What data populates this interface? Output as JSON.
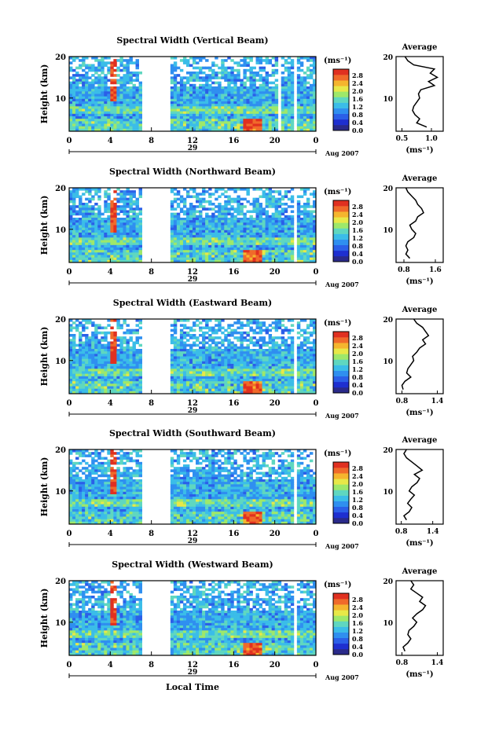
{
  "figure": {
    "xlabel": "Local Time",
    "date_label": "Aug 2007",
    "day_label": "29",
    "unit_label": "(ms⁻¹)",
    "avg_title": "Average",
    "ylabel": "Height (km)",
    "x_ticks": [
      "0",
      "4",
      "8",
      "12",
      "16",
      "20",
      "0"
    ],
    "y_ticks": [
      "20",
      "10"
    ],
    "colorbar_ticks": [
      "2.8",
      "2.4",
      "2.0",
      "1.6",
      "1.2",
      "0.8",
      "0.4",
      "0.0"
    ],
    "colors": {
      "scale": [
        "#2a2a8a",
        "#1e2fd0",
        "#2b5fe8",
        "#2f8ff0",
        "#3bbde8",
        "#5fd7c0",
        "#9ee86a",
        "#e8e848",
        "#f5b52e",
        "#f06a2a",
        "#e03020"
      ],
      "line": "#000000"
    }
  },
  "chart_data": [
    {
      "type": "heatmap",
      "title": "Spectral Width (Vertical Beam)",
      "ylabel": "Height (km)",
      "xlabel": "Local Time",
      "x_range_hours": [
        0,
        24
      ],
      "y_range_km": [
        2,
        20
      ],
      "colorbar_range": [
        0.0,
        2.8
      ],
      "data_gaps_hours": [
        [
          7.0,
          9.8
        ],
        [
          20.2,
          20.5
        ],
        [
          21.8,
          22.1
        ]
      ],
      "profile": {
        "title": "Average",
        "xlabel": "(ms⁻¹)",
        "x_ticks": [
          "0.5",
          "1.0"
        ],
        "x_range": [
          0.4,
          1.2
        ],
        "heights_km": [
          3,
          4,
          5,
          6,
          7,
          8,
          9,
          10,
          11,
          12,
          13,
          14,
          15,
          16,
          17,
          18,
          19,
          20
        ],
        "values": [
          0.92,
          0.75,
          0.8,
          0.72,
          0.68,
          0.7,
          0.75,
          0.8,
          0.78,
          0.82,
          1.05,
          0.95,
          1.1,
          0.98,
          1.05,
          0.7,
          0.6,
          0.55
        ]
      }
    },
    {
      "type": "heatmap",
      "title": "Spectral Width (Northward Beam)",
      "ylabel": "Height (km)",
      "xlabel": "Local Time",
      "x_range_hours": [
        0,
        24
      ],
      "y_range_km": [
        2,
        20
      ],
      "colorbar_range": [
        0.0,
        2.8
      ],
      "data_gaps_hours": [
        [
          7.0,
          9.8
        ],
        [
          21.9,
          22.2
        ]
      ],
      "profile": {
        "title": "Average",
        "xlabel": "(ms⁻¹)",
        "x_ticks": [
          "0.8",
          "1.6"
        ],
        "x_range": [
          0.6,
          1.8
        ],
        "heights_km": [
          3,
          4,
          5,
          6,
          7,
          8,
          9,
          10,
          11,
          12,
          13,
          14,
          15,
          16,
          17,
          18,
          19,
          20
        ],
        "values": [
          0.95,
          0.85,
          0.9,
          0.85,
          0.9,
          1.05,
          1.1,
          1.0,
          0.95,
          1.1,
          1.15,
          1.3,
          1.25,
          1.15,
          1.1,
          1.0,
          0.9,
          0.85
        ]
      }
    },
    {
      "type": "heatmap",
      "title": "Spectral Width (Eastward Beam)",
      "ylabel": "Height (km)",
      "xlabel": "Local Time",
      "x_range_hours": [
        0,
        24
      ],
      "y_range_km": [
        2,
        20
      ],
      "colorbar_range": [
        0.0,
        2.8
      ],
      "data_gaps_hours": [
        [
          7.0,
          9.8
        ],
        [
          21.9,
          22.2
        ]
      ],
      "profile": {
        "title": "Average",
        "xlabel": "(ms⁻¹)",
        "x_ticks": [
          "0.8",
          "1.4"
        ],
        "x_range": [
          0.7,
          1.5
        ],
        "heights_km": [
          3,
          4,
          5,
          6,
          7,
          8,
          9,
          10,
          11,
          12,
          13,
          14,
          15,
          16,
          17,
          18,
          19,
          20
        ],
        "values": [
          0.82,
          0.8,
          0.85,
          0.95,
          0.88,
          0.9,
          0.95,
          1.0,
          0.98,
          1.05,
          1.1,
          1.2,
          1.15,
          1.25,
          1.2,
          1.15,
          1.05,
          1.0
        ]
      }
    },
    {
      "type": "heatmap",
      "title": "Spectral Width (Southward Beam)",
      "ylabel": "Height (km)",
      "xlabel": "Local Time",
      "x_range_hours": [
        0,
        24
      ],
      "y_range_km": [
        2,
        20
      ],
      "colorbar_range": [
        0.0,
        2.8
      ],
      "data_gaps_hours": [
        [
          7.0,
          9.8
        ],
        [
          21.9,
          22.2
        ]
      ],
      "profile": {
        "title": "Average",
        "xlabel": "(ms⁻¹)",
        "x_ticks": [
          "0.8",
          "1.4"
        ],
        "x_range": [
          0.7,
          1.6
        ],
        "heights_km": [
          3,
          4,
          5,
          6,
          7,
          8,
          9,
          10,
          11,
          12,
          13,
          14,
          15,
          16,
          17,
          18,
          19,
          20
        ],
        "values": [
          0.9,
          0.85,
          0.95,
          1.0,
          0.92,
          0.98,
          1.05,
          0.95,
          1.0,
          1.1,
          1.15,
          1.05,
          1.2,
          1.1,
          1.0,
          0.9,
          0.85,
          0.9
        ]
      }
    },
    {
      "type": "heatmap",
      "title": "Spectral Width (Westward Beam)",
      "ylabel": "Height (km)",
      "xlabel": "Local Time",
      "x_range_hours": [
        0,
        24
      ],
      "y_range_km": [
        2,
        20
      ],
      "colorbar_range": [
        0.0,
        2.8
      ],
      "data_gaps_hours": [
        [
          7.0,
          9.8
        ],
        [
          21.9,
          22.2
        ]
      ],
      "profile": {
        "title": "Average",
        "xlabel": "(ms⁻¹)",
        "x_ticks": [
          "0.8",
          "1.4"
        ],
        "x_range": [
          0.7,
          1.5
        ],
        "heights_km": [
          3,
          4,
          5,
          6,
          7,
          8,
          9,
          10,
          11,
          12,
          13,
          14,
          15,
          16,
          17,
          18,
          19,
          20
        ],
        "values": [
          0.85,
          0.82,
          0.9,
          0.95,
          0.9,
          0.92,
          1.0,
          1.05,
          0.98,
          1.05,
          1.15,
          1.2,
          1.1,
          1.15,
          1.05,
          0.95,
          1.0,
          0.95
        ]
      }
    }
  ]
}
